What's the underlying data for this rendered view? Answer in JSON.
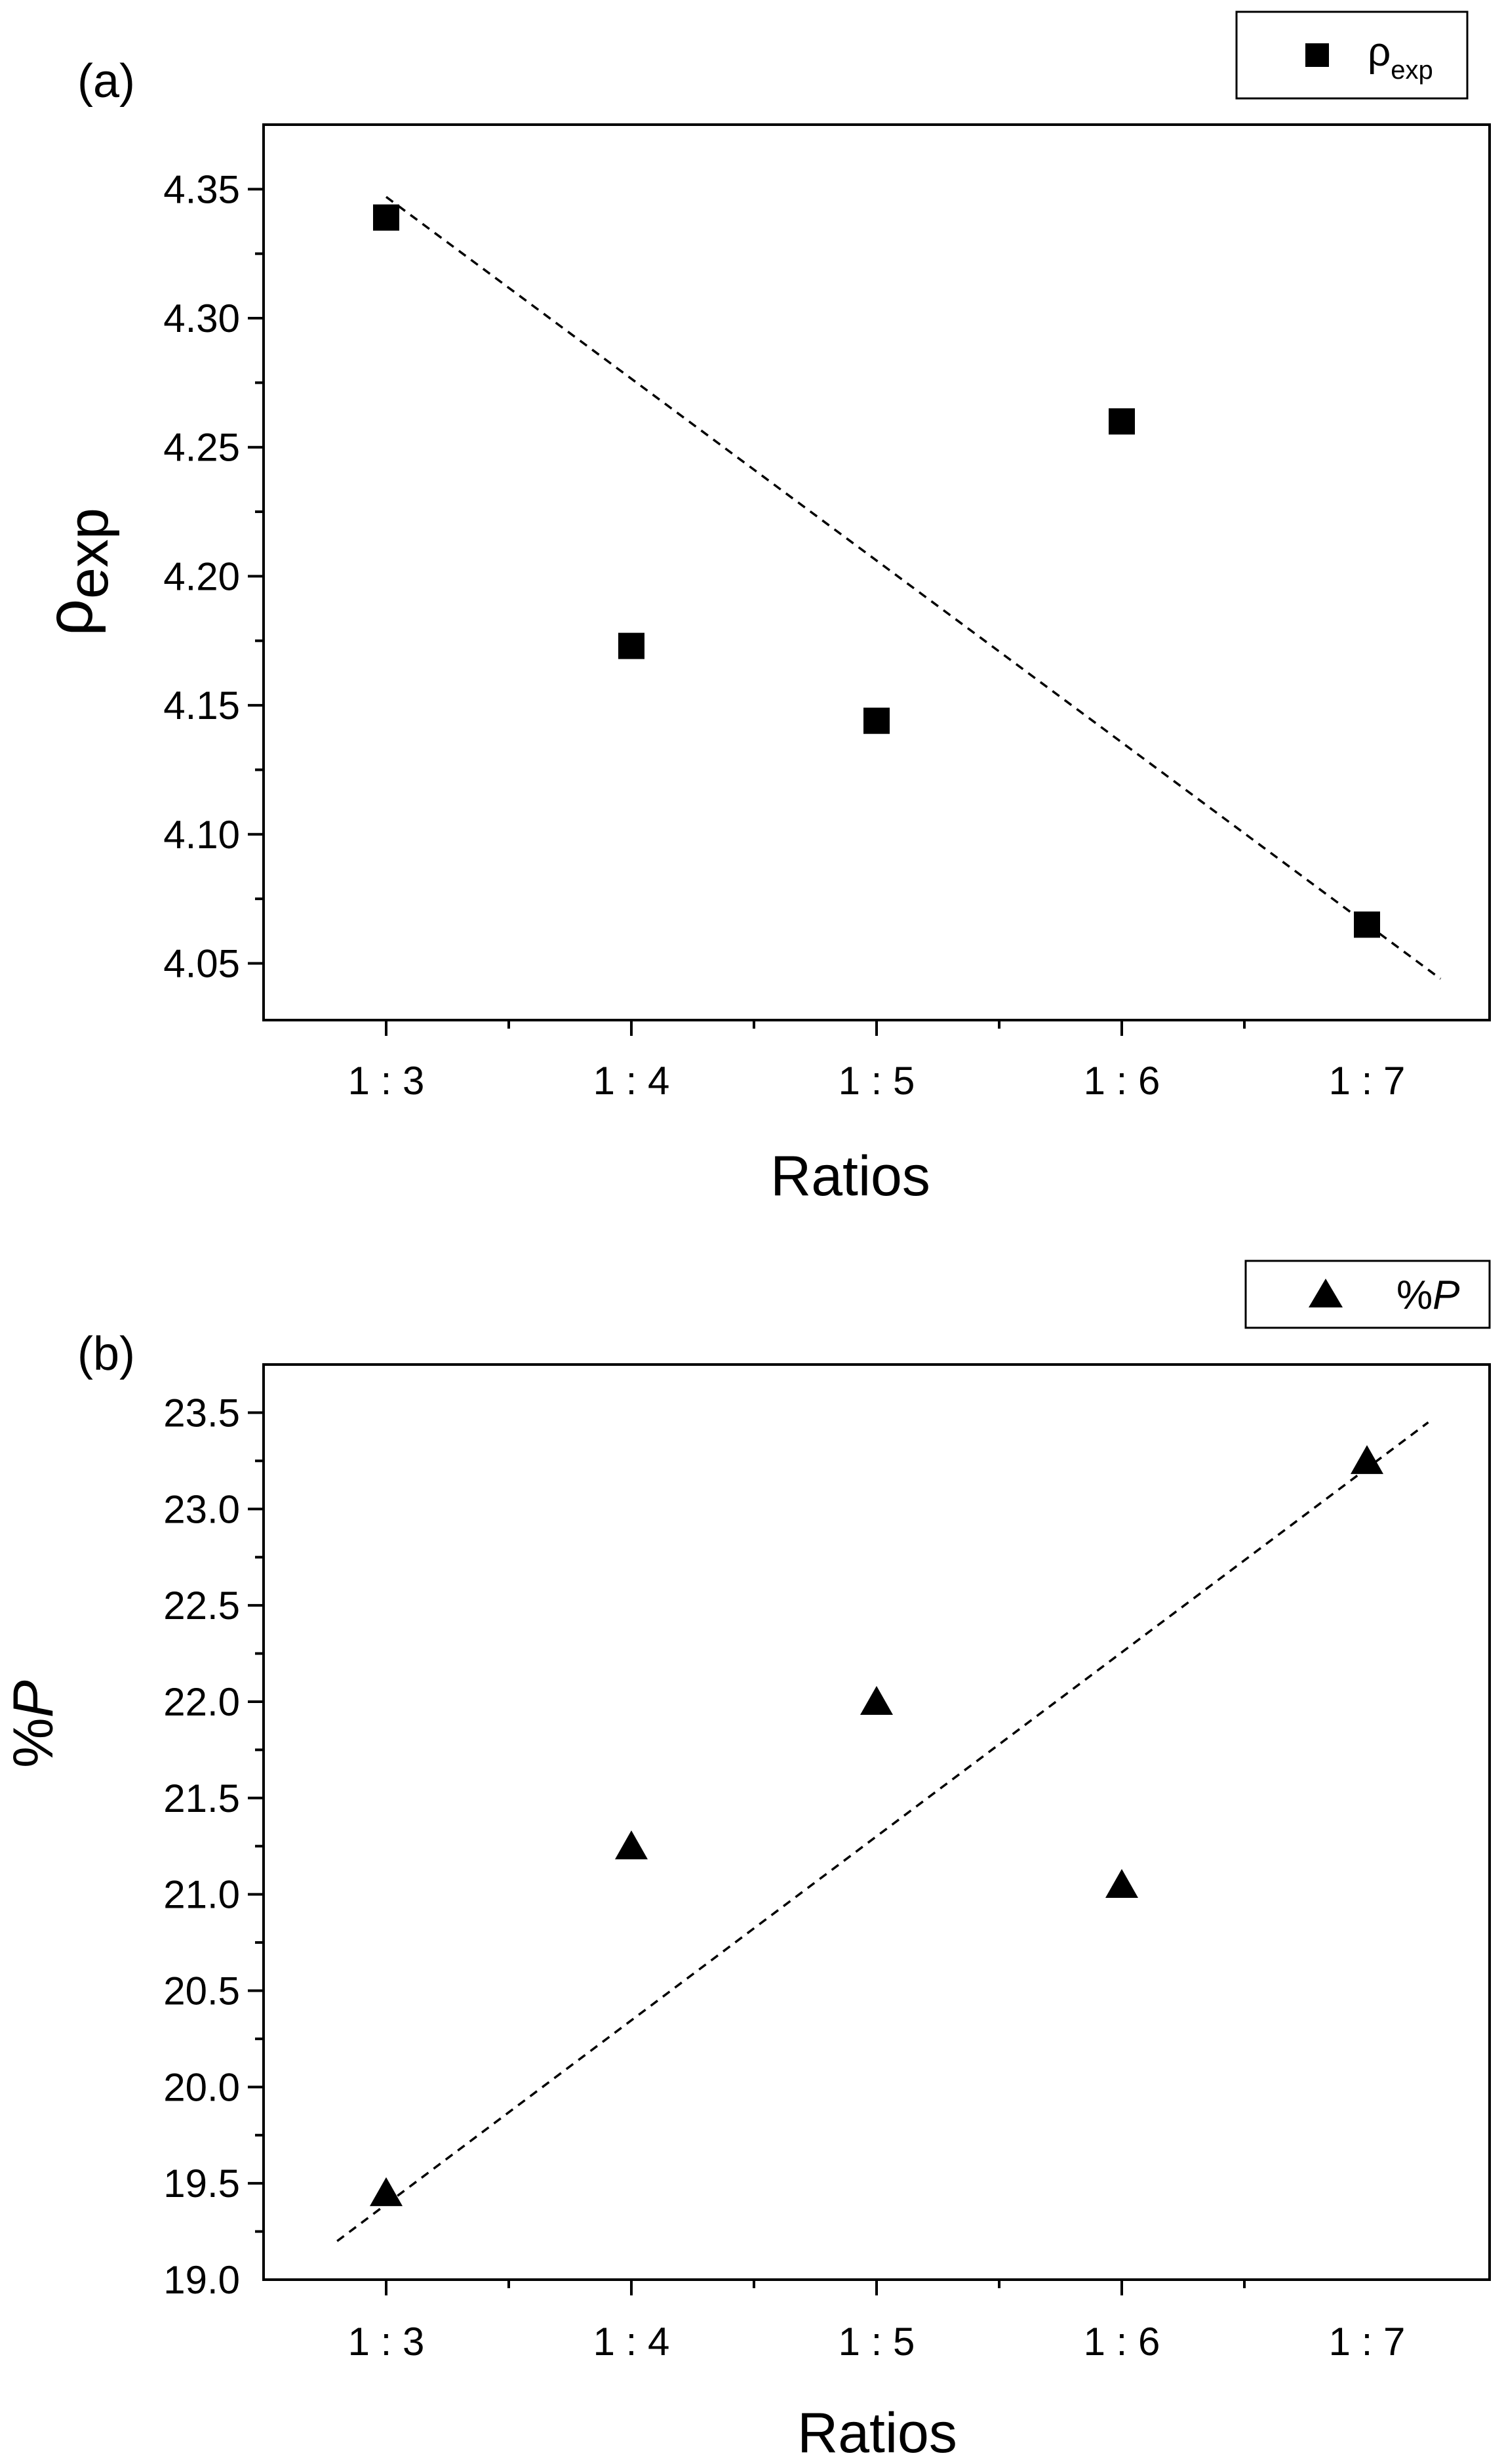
{
  "chart_data": [
    {
      "type": "scatter",
      "panel_label": "(a)",
      "categories": [
        "1 : 3",
        "1 : 4",
        "1 : 5",
        "1 : 6",
        "1 : 7"
      ],
      "series": [
        {
          "name": "ρexp",
          "name_main": "ρ",
          "name_sub": "exp",
          "marker": "square",
          "values": [
            4.339,
            4.173,
            4.144,
            4.26,
            4.065
          ]
        }
      ],
      "trendline": {
        "style": "dashed",
        "x": [
          -0.0,
          4.3
        ],
        "y": [
          4.347,
          4.044
        ]
      },
      "xlabel": "Ratios",
      "ylabel": "ρexp",
      "ylabel_main": "ρ",
      "ylabel_sub": "exp",
      "xlim": [
        -0.5,
        4.5
      ],
      "ylim": [
        4.028,
        4.375
      ],
      "yticks": [
        "4.05",
        "4.10",
        "4.15",
        "4.20",
        "4.25",
        "4.30",
        "4.35"
      ],
      "ytick_values": [
        4.05,
        4.1,
        4.15,
        4.2,
        4.25,
        4.3,
        4.35
      ],
      "legend_position": "top-right (outside)"
    },
    {
      "type": "scatter",
      "panel_label": "(b)",
      "categories": [
        "1 : 3",
        "1 : 4",
        "1 : 5",
        "1 : 6",
        "1 : 7"
      ],
      "series": [
        {
          "name": "%P",
          "name_prefix": "%",
          "name_italic": "P",
          "marker": "triangle",
          "values": [
            19.45,
            21.25,
            22.0,
            21.05,
            23.25
          ]
        }
      ],
      "trendline": {
        "style": "dashed",
        "x": [
          -0.2,
          4.25
        ],
        "y": [
          19.2,
          23.45
        ]
      },
      "xlabel": "Ratios",
      "ylabel": "%P",
      "ylabel_prefix": "%",
      "ylabel_italic": "P",
      "xlim": [
        -0.5,
        4.5
      ],
      "ylim": [
        19.0,
        23.75
      ],
      "yticks": [
        "19.0",
        "19.5",
        "20.0",
        "20.5",
        "21.0",
        "21.5",
        "22.0",
        "22.5",
        "23.0",
        "23.5"
      ],
      "ytick_values": [
        19.0,
        19.5,
        20.0,
        20.5,
        21.0,
        21.5,
        22.0,
        22.5,
        23.0,
        23.5
      ],
      "legend_position": "top-right (outside)"
    }
  ]
}
